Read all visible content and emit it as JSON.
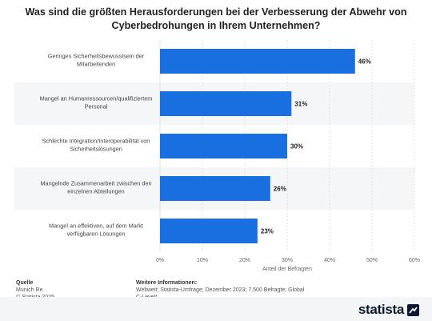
{
  "chart_data": {
    "type": "bar",
    "orientation": "horizontal",
    "title": "Was sind die größten Herausforderungen bei der Verbesserung der Abwehr von Cyberbedrohungen in Ihrem Unternehmen?",
    "xlabel": "Anteil der Befragten",
    "categories": [
      "Geringes Sicherheitsbewusstsein der Mitarbeitenden",
      "Mangel an Humanressourcen/qualifiziertem Personal",
      "Schlechte Integration/Interoperabilität von Sicherheitslösungen",
      "Mangelnde Zusammenarbeit zwischen den einzelnen Abteilungen",
      "Mangel an effektiven, auf dem Markt verfügbaren Lösungen"
    ],
    "category_lines": [
      [
        "Geringes Sicherheitsbewusstsein der",
        "Mitarbeitenden"
      ],
      [
        "Mangel an Humanressourcen/qualifiziertem",
        "Personal"
      ],
      [
        "Schlechte Integration/Interoperabilität von",
        "Sicherheitslösungen"
      ],
      [
        "Mangelnde Zusammenarbeit zwischen den",
        "einzelnen Abteilungen"
      ],
      [
        "Mangel an effektiven, auf dem Markt",
        "verfügbaren Lösungen"
      ]
    ],
    "values": [
      46,
      31,
      30,
      26,
      23
    ],
    "value_labels": [
      "46%",
      "31%",
      "30%",
      "26%",
      "23%"
    ],
    "xlim": [
      0,
      60
    ],
    "ticks": [
      0,
      10,
      20,
      30,
      40,
      50,
      60
    ],
    "tick_labels": [
      "0%",
      "10%",
      "20%",
      "30%",
      "40%",
      "50%",
      "60%"
    ],
    "grid": true,
    "bar_color": "#1a6fe0"
  },
  "footer": {
    "source_heading": "Quelle",
    "source_lines": [
      "Munich Re",
      "© Statista 2025"
    ],
    "info_heading": "Weitere Informationen:",
    "info_text": "Weltweit; Statista-Umfrage; Dezember 2023; 7.500 Befragte; Global C-Level*"
  },
  "brand": {
    "name": "statista"
  }
}
